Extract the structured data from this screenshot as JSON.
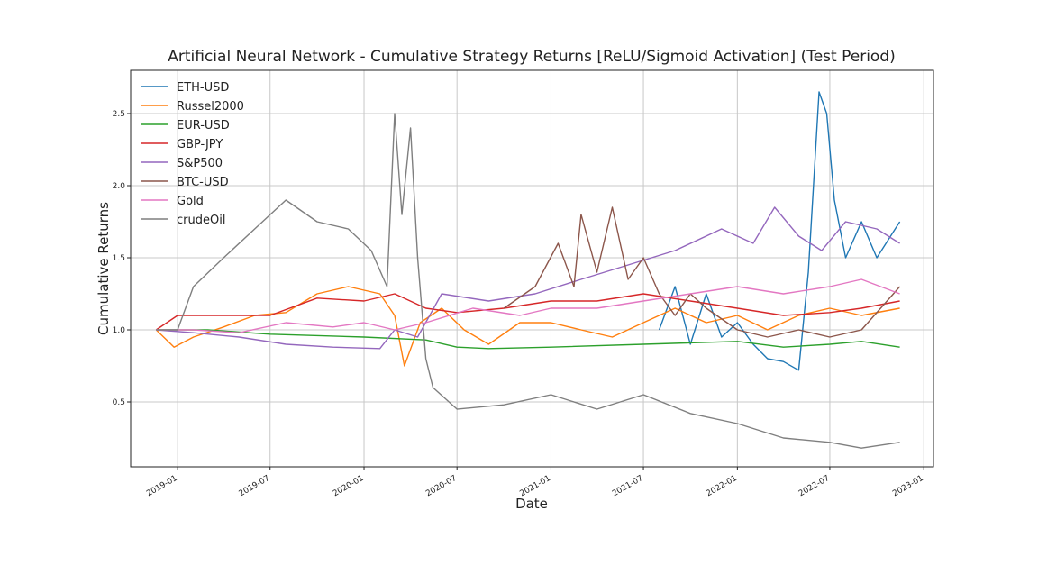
{
  "chart_data": {
    "type": "line",
    "title": "Artificial Neural Network - Cumulative Strategy Returns [ReLU/Sigmoid Activation] (Test Period)",
    "xlabel": "Date",
    "ylabel": "Cumulative Returns",
    "xlim": [
      "2018-10-01",
      "2023-01-20"
    ],
    "ylim": [
      0.05,
      2.8
    ],
    "grid": true,
    "legend_position": "top-left",
    "x_ticks": [
      "2019-01",
      "2019-07",
      "2020-01",
      "2020-07",
      "2021-01",
      "2021-07",
      "2022-01",
      "2022-07",
      "2023-01"
    ],
    "y_ticks": [
      "0.5",
      "1.0",
      "1.5",
      "2.0",
      "2.5"
    ],
    "series": [
      {
        "name": "ETH-USD",
        "color": "#1f77b4",
        "points": [
          [
            "2021-08-01",
            1.0
          ],
          [
            "2021-09-01",
            1.3
          ],
          [
            "2021-10-01",
            0.9
          ],
          [
            "2021-11-01",
            1.25
          ],
          [
            "2021-12-01",
            0.95
          ],
          [
            "2022-01-01",
            1.05
          ],
          [
            "2022-02-01",
            0.9
          ],
          [
            "2022-03-01",
            0.8
          ],
          [
            "2022-04-01",
            0.78
          ],
          [
            "2022-05-01",
            0.72
          ],
          [
            "2022-05-20",
            1.4
          ],
          [
            "2022-06-10",
            2.65
          ],
          [
            "2022-06-25",
            2.5
          ],
          [
            "2022-07-10",
            1.9
          ],
          [
            "2022-08-01",
            1.5
          ],
          [
            "2022-09-01",
            1.75
          ],
          [
            "2022-10-01",
            1.5
          ],
          [
            "2022-11-15",
            1.75
          ]
        ]
      },
      {
        "name": "Russel2000",
        "color": "#ff7f0e",
        "points": [
          [
            "2018-11-20",
            1.0
          ],
          [
            "2018-12-25",
            0.88
          ],
          [
            "2019-02-01",
            0.95
          ],
          [
            "2019-04-01",
            1.02
          ],
          [
            "2019-06-01",
            1.1
          ],
          [
            "2019-08-01",
            1.12
          ],
          [
            "2019-10-01",
            1.25
          ],
          [
            "2019-12-01",
            1.3
          ],
          [
            "2020-02-01",
            1.25
          ],
          [
            "2020-03-01",
            1.1
          ],
          [
            "2020-03-20",
            0.75
          ],
          [
            "2020-04-20",
            1.05
          ],
          [
            "2020-06-01",
            1.15
          ],
          [
            "2020-07-15",
            1.0
          ],
          [
            "2020-09-01",
            0.9
          ],
          [
            "2020-11-01",
            1.05
          ],
          [
            "2021-01-01",
            1.05
          ],
          [
            "2021-03-01",
            1.0
          ],
          [
            "2021-05-01",
            0.95
          ],
          [
            "2021-07-01",
            1.05
          ],
          [
            "2021-09-01",
            1.15
          ],
          [
            "2021-11-01",
            1.05
          ],
          [
            "2022-01-01",
            1.1
          ],
          [
            "2022-03-01",
            1.0
          ],
          [
            "2022-05-01",
            1.1
          ],
          [
            "2022-07-01",
            1.15
          ],
          [
            "2022-09-01",
            1.1
          ],
          [
            "2022-11-15",
            1.15
          ]
        ]
      },
      {
        "name": "EUR-USD",
        "color": "#2ca02c",
        "points": [
          [
            "2018-11-20",
            1.0
          ],
          [
            "2019-03-01",
            1.0
          ],
          [
            "2019-07-01",
            0.97
          ],
          [
            "2020-01-01",
            0.95
          ],
          [
            "2020-05-01",
            0.93
          ],
          [
            "2020-07-01",
            0.88
          ],
          [
            "2020-09-01",
            0.87
          ],
          [
            "2021-01-01",
            0.88
          ],
          [
            "2021-07-01",
            0.9
          ],
          [
            "2022-01-01",
            0.92
          ],
          [
            "2022-04-01",
            0.88
          ],
          [
            "2022-07-01",
            0.9
          ],
          [
            "2022-09-01",
            0.92
          ],
          [
            "2022-11-15",
            0.88
          ]
        ]
      },
      {
        "name": "GBP-JPY",
        "color": "#d62728",
        "points": [
          [
            "2018-11-20",
            1.0
          ],
          [
            "2019-01-01",
            1.1
          ],
          [
            "2019-04-01",
            1.1
          ],
          [
            "2019-07-01",
            1.1
          ],
          [
            "2019-10-01",
            1.22
          ],
          [
            "2020-01-01",
            1.2
          ],
          [
            "2020-03-01",
            1.25
          ],
          [
            "2020-05-01",
            1.15
          ],
          [
            "2020-07-01",
            1.12
          ],
          [
            "2020-10-01",
            1.15
          ],
          [
            "2021-01-01",
            1.2
          ],
          [
            "2021-04-01",
            1.2
          ],
          [
            "2021-07-01",
            1.25
          ],
          [
            "2021-10-01",
            1.2
          ],
          [
            "2022-01-01",
            1.15
          ],
          [
            "2022-04-01",
            1.1
          ],
          [
            "2022-07-01",
            1.12
          ],
          [
            "2022-09-01",
            1.15
          ],
          [
            "2022-11-15",
            1.2
          ]
        ]
      },
      {
        "name": "S&P500",
        "color": "#9467bd",
        "points": [
          [
            "2018-11-20",
            1.0
          ],
          [
            "2019-02-01",
            0.98
          ],
          [
            "2019-05-01",
            0.95
          ],
          [
            "2019-08-01",
            0.9
          ],
          [
            "2019-11-01",
            0.88
          ],
          [
            "2020-02-01",
            0.87
          ],
          [
            "2020-03-01",
            1.0
          ],
          [
            "2020-04-15",
            0.95
          ],
          [
            "2020-06-01",
            1.25
          ],
          [
            "2020-09-01",
            1.2
          ],
          [
            "2020-12-01",
            1.25
          ],
          [
            "2021-03-01",
            1.35
          ],
          [
            "2021-06-01",
            1.45
          ],
          [
            "2021-09-01",
            1.55
          ],
          [
            "2021-12-01",
            1.7
          ],
          [
            "2022-02-01",
            1.6
          ],
          [
            "2022-03-15",
            1.85
          ],
          [
            "2022-05-01",
            1.65
          ],
          [
            "2022-06-15",
            1.55
          ],
          [
            "2022-08-01",
            1.75
          ],
          [
            "2022-10-01",
            1.7
          ],
          [
            "2022-11-15",
            1.6
          ]
        ]
      },
      {
        "name": "BTC-USD",
        "color": "#8c564b",
        "points": [
          [
            "2020-10-01",
            1.15
          ],
          [
            "2020-12-01",
            1.3
          ],
          [
            "2021-01-15",
            1.6
          ],
          [
            "2021-02-15",
            1.3
          ],
          [
            "2021-03-01",
            1.8
          ],
          [
            "2021-04-01",
            1.4
          ],
          [
            "2021-05-01",
            1.85
          ],
          [
            "2021-06-01",
            1.35
          ],
          [
            "2021-07-01",
            1.5
          ],
          [
            "2021-08-01",
            1.25
          ],
          [
            "2021-09-01",
            1.1
          ],
          [
            "2021-10-01",
            1.25
          ],
          [
            "2021-11-01",
            1.15
          ],
          [
            "2022-01-01",
            1.0
          ],
          [
            "2022-03-01",
            0.95
          ],
          [
            "2022-05-01",
            1.0
          ],
          [
            "2022-07-01",
            0.95
          ],
          [
            "2022-09-01",
            1.0
          ],
          [
            "2022-11-15",
            1.3
          ]
        ]
      },
      {
        "name": "Gold",
        "color": "#e377c2",
        "points": [
          [
            "2018-11-20",
            1.0
          ],
          [
            "2019-02-01",
            1.0
          ],
          [
            "2019-05-01",
            0.98
          ],
          [
            "2019-08-01",
            1.05
          ],
          [
            "2019-11-01",
            1.02
          ],
          [
            "2020-01-01",
            1.05
          ],
          [
            "2020-03-01",
            1.0
          ],
          [
            "2020-05-01",
            1.05
          ],
          [
            "2020-08-01",
            1.15
          ],
          [
            "2020-11-01",
            1.1
          ],
          [
            "2021-01-01",
            1.15
          ],
          [
            "2021-04-01",
            1.15
          ],
          [
            "2021-07-01",
            1.2
          ],
          [
            "2021-10-01",
            1.25
          ],
          [
            "2022-01-01",
            1.3
          ],
          [
            "2022-04-01",
            1.25
          ],
          [
            "2022-07-01",
            1.3
          ],
          [
            "2022-09-01",
            1.35
          ],
          [
            "2022-11-15",
            1.25
          ]
        ]
      },
      {
        "name": "crudeOil",
        "color": "#7f7f7f",
        "points": [
          [
            "2018-11-20",
            1.0
          ],
          [
            "2019-01-01",
            1.0
          ],
          [
            "2019-02-01",
            1.3
          ],
          [
            "2019-04-01",
            1.5
          ],
          [
            "2019-06-01",
            1.7
          ],
          [
            "2019-08-01",
            1.9
          ],
          [
            "2019-10-01",
            1.75
          ],
          [
            "2019-12-01",
            1.7
          ],
          [
            "2020-01-15",
            1.55
          ],
          [
            "2020-02-15",
            1.3
          ],
          [
            "2020-03-01",
            2.5
          ],
          [
            "2020-03-15",
            1.8
          ],
          [
            "2020-04-01",
            2.4
          ],
          [
            "2020-04-15",
            1.5
          ],
          [
            "2020-05-01",
            0.8
          ],
          [
            "2020-05-15",
            0.6
          ],
          [
            "2020-07-01",
            0.45
          ],
          [
            "2020-10-01",
            0.48
          ],
          [
            "2021-01-01",
            0.55
          ],
          [
            "2021-04-01",
            0.45
          ],
          [
            "2021-07-01",
            0.55
          ],
          [
            "2021-10-01",
            0.42
          ],
          [
            "2022-01-01",
            0.35
          ],
          [
            "2022-04-01",
            0.25
          ],
          [
            "2022-07-01",
            0.22
          ],
          [
            "2022-09-01",
            0.18
          ],
          [
            "2022-11-15",
            0.22
          ]
        ]
      }
    ]
  }
}
